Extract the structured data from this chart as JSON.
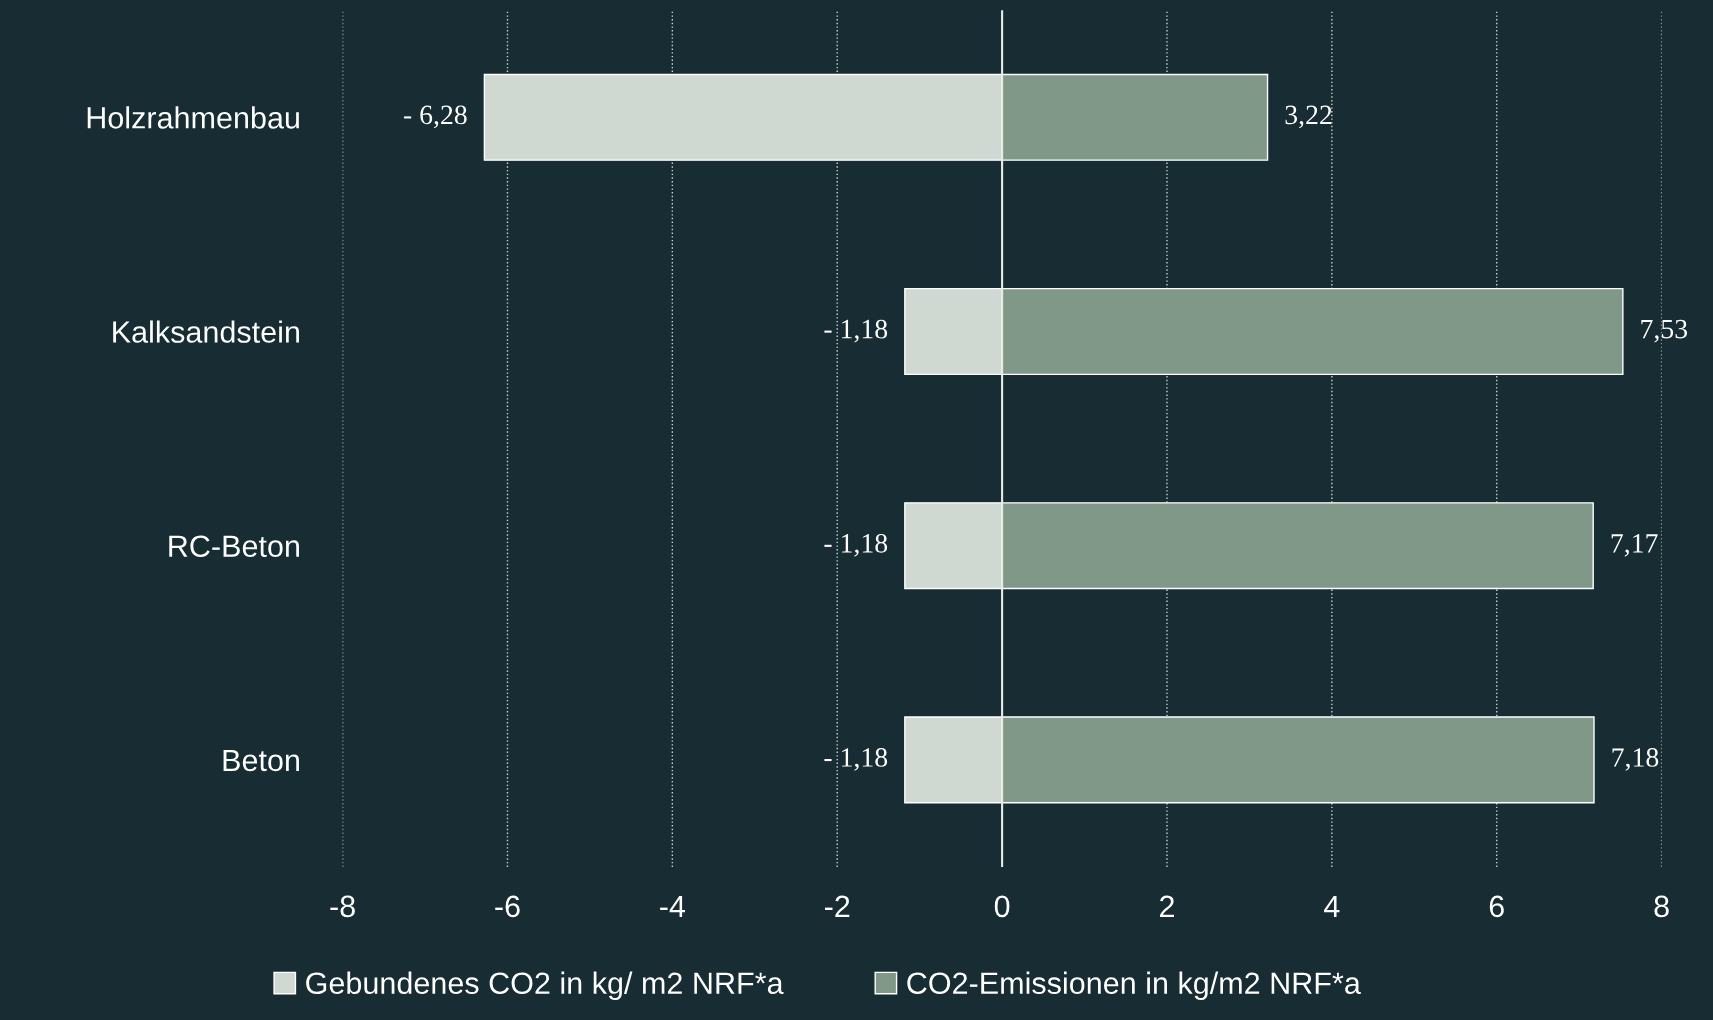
{
  "chart_data": {
    "type": "bar",
    "orientation": "horizontal",
    "stacked": true,
    "categories": [
      "Holzrahmenbau",
      "Kalksandstein",
      "RC-Beton",
      "Beton"
    ],
    "series": [
      {
        "name": "Gebundenes CO2 in kg/ m2 NRF*a",
        "color": "#cfd9d1",
        "values": [
          -6.28,
          -1.18,
          -1.18,
          -1.18
        ],
        "value_labels": [
          "- 6,28",
          "- 1,18",
          "- 1,18",
          "- 1,18"
        ]
      },
      {
        "name": "CO2-Emissionen in kg/m2 NRF*a",
        "color": "#809888",
        "values": [
          3.22,
          7.53,
          7.17,
          7.18
        ],
        "value_labels": [
          "3,22",
          "7,53",
          "7,17",
          "7,18"
        ]
      }
    ],
    "xlim": [
      -8,
      8
    ],
    "xticks": [
      -8,
      -6,
      -4,
      -2,
      0,
      2,
      4,
      6,
      8
    ],
    "grid": "x",
    "legend": "bottom"
  }
}
